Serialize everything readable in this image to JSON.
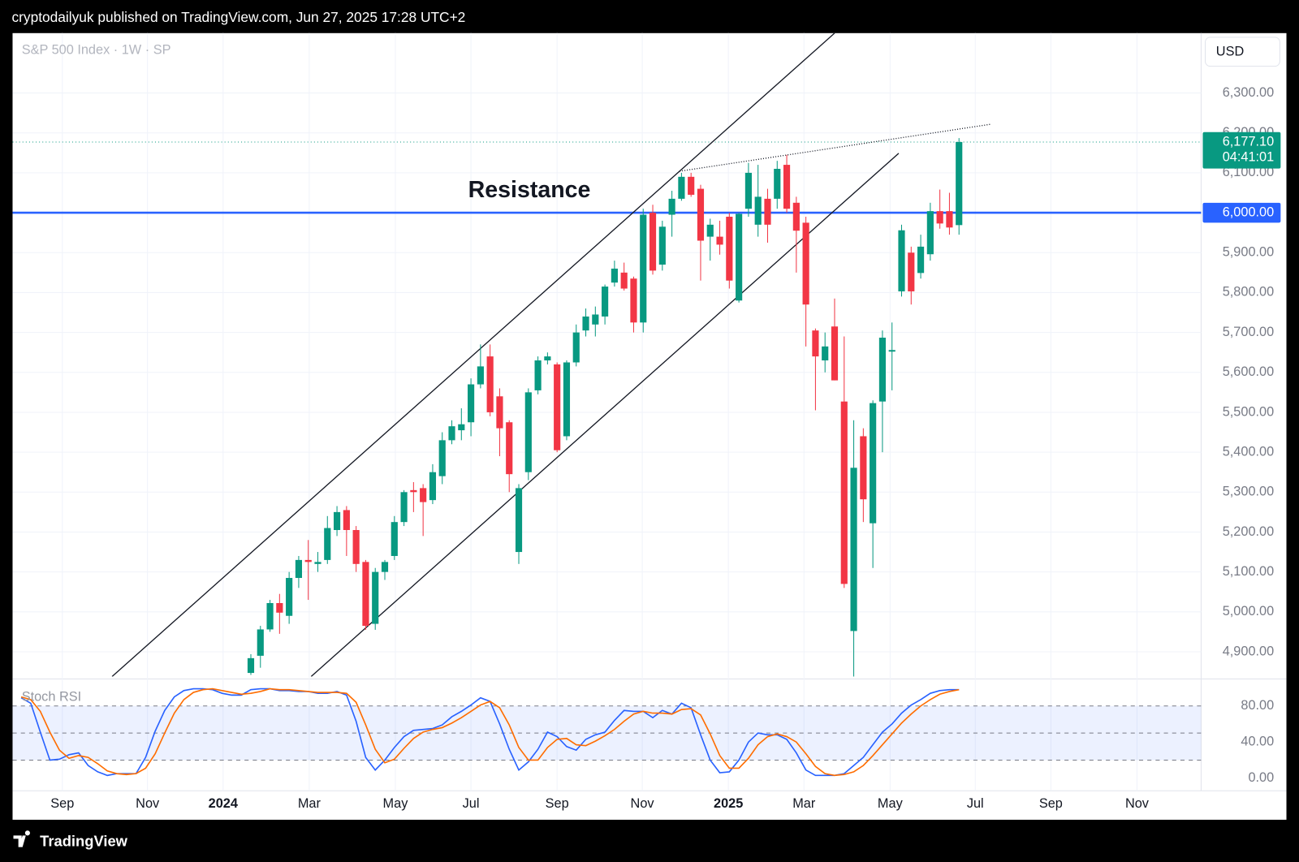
{
  "header": {
    "text": "cryptodailyuk published on TradingView.com, Jun 27, 2025 17:28 UTC+2"
  },
  "currency": "USD",
  "footer": {
    "brand": "TradingView"
  },
  "chart_data": [
    {
      "type": "candlestick",
      "title": "S&P 500 Index · 1W · SP",
      "up_color": "#089981",
      "down_color": "#f23645",
      "grid": true,
      "x": [
        20,
        21,
        22,
        23,
        24,
        25,
        26,
        27,
        28,
        29,
        30,
        31,
        32,
        33,
        34,
        35,
        36,
        37,
        38,
        39,
        40,
        41,
        42,
        43,
        44,
        45,
        46,
        47,
        48,
        49,
        50,
        51,
        52,
        53,
        54,
        55,
        56,
        57,
        58,
        59,
        60,
        61,
        62,
        63,
        64,
        65,
        66,
        67,
        68,
        69,
        70,
        71,
        72,
        73,
        74,
        75,
        76,
        77,
        78,
        79,
        80,
        81,
        82,
        83,
        84,
        85,
        86,
        87,
        88,
        89,
        90,
        91,
        92,
        93,
        94
      ],
      "open": [
        4847,
        4890,
        4956,
        5022,
        4990,
        5085,
        5130,
        5120,
        5130,
        5205,
        5255,
        5205,
        5125,
        4970,
        5100,
        5140,
        5225,
        5305,
        5310,
        5280,
        5340,
        5430,
        5455,
        5475,
        5570,
        5640,
        5540,
        5475,
        5150,
        5350,
        5555,
        5630,
        5620,
        5440,
        5625,
        5705,
        5720,
        5740,
        5825,
        5850,
        5835,
        5725,
        6000,
        5870,
        5995,
        6035,
        6090,
        6060,
        5940,
        5940,
        5990,
        5780,
        6010,
        5970,
        6035,
        6035,
        6120,
        6025,
        5975,
        5705,
        5630,
        5715,
        5527,
        4952,
        5440,
        5222,
        5527,
        5652,
        5803,
        5900,
        5849,
        5896,
        6004,
        6004,
        5969
      ],
      "high": [
        4894,
        4965,
        5030,
        5045,
        5100,
        5140,
        5180,
        5150,
        5240,
        5265,
        5265,
        5215,
        5130,
        5110,
        5130,
        5240,
        5305,
        5325,
        5320,
        5370,
        5450,
        5480,
        5510,
        5585,
        5670,
        5670,
        5560,
        5480,
        5320,
        5560,
        5640,
        5650,
        5625,
        5630,
        5720,
        5760,
        5765,
        5820,
        5880,
        5875,
        5840,
        6010,
        6020,
        5980,
        6055,
        6100,
        6100,
        6070,
        5985,
        5980,
        6000,
        6000,
        6125,
        6120,
        6060,
        6130,
        6145,
        6040,
        5990,
        5710,
        5700,
        5785,
        5690,
        5480,
        5460,
        5530,
        5705,
        5725,
        5970,
        5915,
        5945,
        6025,
        6058,
        6050,
        6187
      ],
      "low": [
        4842,
        4860,
        4950,
        4945,
        4970,
        5060,
        5030,
        5100,
        5120,
        5190,
        5140,
        5100,
        4955,
        4955,
        5080,
        5130,
        5215,
        5250,
        5190,
        5270,
        5320,
        5420,
        5430,
        5440,
        5560,
        5490,
        5390,
        5300,
        5120,
        5330,
        5545,
        5620,
        5400,
        5430,
        5615,
        5690,
        5690,
        5720,
        5815,
        5805,
        5700,
        5700,
        5845,
        5855,
        5940,
        6030,
        6040,
        5830,
        5880,
        5895,
        5810,
        5775,
        5990,
        5940,
        5925,
        6010,
        6000,
        5850,
        5665,
        5505,
        5600,
        5580,
        5060,
        4838,
        5225,
        5110,
        5400,
        5555,
        5790,
        5770,
        5835,
        5880,
        5960,
        5945,
        5945
      ],
      "close": [
        4884,
        4956,
        5022,
        4998,
        5085,
        5130,
        5125,
        5125,
        5210,
        5250,
        5205,
        5120,
        4965,
        5100,
        5125,
        5225,
        5300,
        5300,
        5275,
        5350,
        5430,
        5465,
        5470,
        5570,
        5615,
        5500,
        5460,
        5345,
        5310,
        5550,
        5630,
        5640,
        5405,
        5625,
        5700,
        5740,
        5745,
        5815,
        5860,
        5810,
        5725,
        5995,
        5855,
        5965,
        6035,
        6090,
        6045,
        5930,
        5970,
        5920,
        5830,
        5997,
        6100,
        6040,
        5970,
        6110,
        6010,
        5955,
        5770,
        5640,
        5665,
        5580,
        5070,
        5361,
        5282,
        5523,
        5687,
        5656,
        5956,
        5803,
        5915,
        6004,
        5973,
        5963,
        6177.1
      ],
      "xlim": [
        -4.9,
        119.3
      ],
      "xticks": [
        {
          "value": 0.3,
          "label": "Sep"
        },
        {
          "value": 9.2,
          "label": "Nov"
        },
        {
          "value": 17.1,
          "label": "2024"
        },
        {
          "value": 26.1,
          "label": "Mar"
        },
        {
          "value": 35.1,
          "label": "May"
        },
        {
          "value": 43.0,
          "label": "Jul"
        },
        {
          "value": 52.0,
          "label": "Sep"
        },
        {
          "value": 60.9,
          "label": "Nov"
        },
        {
          "value": 69.9,
          "label": "2025"
        },
        {
          "value": 77.8,
          "label": "Mar"
        },
        {
          "value": 86.8,
          "label": "May"
        },
        {
          "value": 95.7,
          "label": "Jul"
        },
        {
          "value": 103.6,
          "label": "Sep"
        },
        {
          "value": 112.6,
          "label": "Nov"
        }
      ],
      "ylim": [
        4838,
        6450
      ],
      "yticks": [
        {
          "value": 4900,
          "label": "4,900.00"
        },
        {
          "value": 5000,
          "label": "5,000.00"
        },
        {
          "value": 5100,
          "label": "5,100.00"
        },
        {
          "value": 5200,
          "label": "5,200.00"
        },
        {
          "value": 5300,
          "label": "5,300.00"
        },
        {
          "value": 5400,
          "label": "5,400.00"
        },
        {
          "value": 5500,
          "label": "5,500.00"
        },
        {
          "value": 5600,
          "label": "5,600.00"
        },
        {
          "value": 5700,
          "label": "5,700.00"
        },
        {
          "value": 5800,
          "label": "5,800.00"
        },
        {
          "value": 5900,
          "label": "5,900.00"
        },
        {
          "value": 6000,
          "label": "6,000.00"
        },
        {
          "value": 6100,
          "label": "6,100.00"
        },
        {
          "value": 6200,
          "label": "6,200.00"
        },
        {
          "value": 6300,
          "label": "6,300.00"
        }
      ],
      "resistance": {
        "value": 6000,
        "label": "6,000.00",
        "text": "Resistance",
        "color": "#2962ff"
      },
      "last_price": {
        "value": 6177.1,
        "label": "6,177.10"
      },
      "countdown": "04:41:01",
      "trendlines": [
        {
          "x": [
            5.5,
            81.0
          ],
          "y": [
            4838,
            6450
          ],
          "style": "solid"
        },
        {
          "x": [
            26.3,
            87.7
          ],
          "y": [
            4838,
            6149
          ],
          "style": "solid"
        },
        {
          "x": [
            64.8,
            97.4
          ],
          "y": [
            6104,
            6222
          ],
          "style": "dotted"
        }
      ]
    },
    {
      "type": "line",
      "title": "Stoch RSI",
      "x": [
        -4,
        -3,
        -2,
        -1,
        0,
        1,
        2,
        3,
        4,
        5,
        6,
        7,
        8,
        9,
        10,
        11,
        12,
        13,
        14,
        15,
        16,
        17,
        18,
        19,
        20,
        21,
        22,
        23,
        24,
        25,
        26,
        27,
        28,
        29,
        30,
        31,
        32,
        33,
        34,
        35,
        36,
        37,
        38,
        39,
        40,
        41,
        42,
        43,
        44,
        45,
        46,
        47,
        48,
        49,
        50,
        51,
        52,
        53,
        54,
        55,
        56,
        57,
        58,
        59,
        60,
        61,
        62,
        63,
        64,
        65,
        66,
        67,
        68,
        69,
        70,
        71,
        72,
        73,
        74,
        75,
        76,
        77,
        78,
        79,
        80,
        81,
        82,
        83,
        84,
        85,
        86,
        87,
        88,
        89,
        90,
        91,
        92,
        93,
        94
      ],
      "series": [
        {
          "color": "#2962ff",
          "values": [
            89,
            83,
            51,
            20,
            21,
            26,
            28,
            14,
            7,
            3,
            5,
            5,
            5,
            23,
            52,
            75,
            90,
            97,
            99,
            99,
            98,
            94,
            92,
            92,
            98,
            99,
            99,
            97,
            97,
            96,
            96,
            94,
            94,
            96,
            92,
            63,
            23,
            9,
            20,
            34,
            46,
            53,
            54,
            55,
            59,
            68,
            74,
            81,
            89,
            85,
            60,
            32,
            9,
            18,
            32,
            51,
            46,
            35,
            31,
            43,
            48,
            51,
            64,
            75,
            74,
            74,
            67,
            75,
            71,
            83,
            78,
            48,
            20,
            6,
            7,
            20,
            40,
            50,
            48,
            48,
            43,
            28,
            9,
            3,
            3,
            3,
            5,
            14,
            23,
            37,
            51,
            60,
            72,
            81,
            87,
            94,
            97,
            98,
            98
          ]
        },
        {
          "color": "#ff6d00",
          "values": [
            90,
            87,
            74,
            51,
            31,
            22,
            25,
            23,
            16,
            8,
            5,
            4,
            5,
            11,
            27,
            50,
            72,
            87,
            95,
            98,
            99,
            97,
            95,
            93,
            94,
            96,
            99,
            98,
            98,
            97,
            96,
            95,
            95,
            95,
            94,
            84,
            59,
            32,
            17,
            21,
            33,
            44,
            51,
            54,
            56,
            61,
            67,
            74,
            81,
            85,
            78,
            59,
            34,
            20,
            20,
            34,
            43,
            44,
            37,
            36,
            41,
            47,
            54,
            63,
            71,
            74,
            72,
            72,
            71,
            76,
            77,
            70,
            49,
            25,
            11,
            11,
            22,
            37,
            46,
            49,
            46,
            40,
            27,
            13,
            5,
            3,
            4,
            7,
            14,
            25,
            37,
            49,
            61,
            71,
            80,
            87,
            93,
            96,
            98
          ]
        }
      ],
      "ylim": [
        -14,
        108
      ],
      "yticks": [
        {
          "value": 0,
          "label": "0.00"
        },
        {
          "value": 40,
          "label": "40.00"
        },
        {
          "value": 80,
          "label": "80.00"
        }
      ],
      "hlines": [
        20,
        50,
        80
      ],
      "band": [
        20,
        80
      ]
    }
  ]
}
